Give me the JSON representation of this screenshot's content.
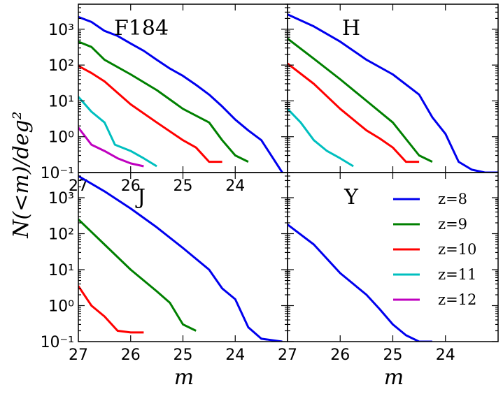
{
  "figure": {
    "ylabel": "N(<m)/deg²",
    "xlabel": "m"
  },
  "colors": {
    "z=8": "#0000ee",
    "z=9": "#008000",
    "z=10": "#ff0000",
    "z=11": "#00bfbf",
    "z=12": "#bf00bf"
  },
  "legend": {
    "placement": "inside Y panel, right",
    "entries": [
      "z=8",
      "z=9",
      "z=10",
      "z=11",
      "z=12"
    ]
  },
  "chart_data": [
    {
      "type": "line",
      "title": "F184",
      "xlabel": "m",
      "ylabel": "N(<m)/deg²",
      "xlim": [
        27,
        23
      ],
      "ylim": [
        0.1,
        5000
      ],
      "yscale": "log",
      "xticks": [
        "27",
        "26",
        "25",
        "24"
      ],
      "yticks": [
        "10³",
        "10²",
        "10¹",
        "10⁰",
        "10⁻¹"
      ],
      "series": [
        {
          "name": "z=8",
          "x": [
            27.0,
            26.75,
            26.5,
            26.25,
            26.0,
            25.75,
            25.5,
            25.25,
            25.0,
            24.75,
            24.5,
            24.25,
            24.0,
            23.75,
            23.5,
            23.1
          ],
          "y": [
            2200,
            1600,
            900,
            650,
            400,
            250,
            140,
            80,
            50,
            28,
            15,
            7,
            3,
            1.5,
            0.8,
            0.1
          ]
        },
        {
          "name": "z=9",
          "x": [
            27.0,
            26.75,
            26.5,
            26.0,
            25.5,
            25.0,
            24.5,
            24.25,
            24.0,
            23.75
          ],
          "y": [
            450,
            320,
            140,
            55,
            20,
            6,
            2.5,
            0.8,
            0.3,
            0.2
          ]
        },
        {
          "name": "z=10",
          "x": [
            27.0,
            26.75,
            26.5,
            26.0,
            25.5,
            25.0,
            24.75,
            24.5,
            24.25
          ],
          "y": [
            95,
            60,
            35,
            8,
            2.5,
            0.8,
            0.5,
            0.2,
            0.2
          ]
        },
        {
          "name": "z=11",
          "x": [
            27.0,
            26.75,
            26.5,
            26.3,
            26.0,
            25.75,
            25.5
          ],
          "y": [
            13,
            5,
            2.5,
            0.6,
            0.4,
            0.25,
            0.15
          ]
        },
        {
          "name": "z=12",
          "x": [
            27.0,
            26.75,
            26.5,
            26.25,
            26.0,
            25.75
          ],
          "y": [
            1.8,
            0.6,
            0.4,
            0.25,
            0.18,
            0.15
          ]
        }
      ]
    },
    {
      "type": "line",
      "title": "H",
      "xlabel": "m",
      "ylabel": "",
      "xlim": [
        27,
        23
      ],
      "ylim": [
        0.1,
        5000
      ],
      "yscale": "log",
      "series": [
        {
          "name": "z=8",
          "x": [
            27.0,
            26.5,
            26.0,
            25.5,
            25.0,
            24.5,
            24.25,
            24.0,
            23.75,
            23.5,
            23.25,
            23.0
          ],
          "y": [
            2600,
            1200,
            450,
            140,
            55,
            15,
            3.5,
            1.2,
            0.2,
            0.12,
            0.1,
            0.1
          ]
        },
        {
          "name": "z=9",
          "x": [
            27.0,
            26.5,
            26.0,
            25.5,
            25.0,
            24.5,
            24.25
          ],
          "y": [
            550,
            150,
            40,
            10,
            2.5,
            0.3,
            0.2
          ]
        },
        {
          "name": "z=10",
          "x": [
            27.0,
            26.5,
            26.0,
            25.5,
            25.25,
            25.0,
            24.75,
            24.5
          ],
          "y": [
            110,
            30,
            6,
            1.5,
            0.9,
            0.5,
            0.2,
            0.2
          ]
        },
        {
          "name": "z=11",
          "x": [
            27.0,
            26.75,
            26.5,
            26.25,
            26.0,
            25.75
          ],
          "y": [
            6,
            2.5,
            0.8,
            0.4,
            0.25,
            0.15
          ]
        }
      ]
    },
    {
      "type": "line",
      "title": "J",
      "xlabel": "m",
      "ylabel": "",
      "xlim": [
        27,
        23
      ],
      "ylim": [
        0.1,
        5000
      ],
      "yscale": "log",
      "xticks": [
        "27",
        "26",
        "25",
        "24"
      ],
      "yticks": [
        "10³",
        "10²",
        "10¹",
        "10⁰",
        "10⁻¹"
      ],
      "series": [
        {
          "name": "z=8",
          "x": [
            27.0,
            26.5,
            26.0,
            25.5,
            25.0,
            24.5,
            24.25,
            24.0,
            23.75,
            23.5,
            23.1
          ],
          "y": [
            4000,
            1500,
            500,
            150,
            40,
            10,
            3,
            1.5,
            0.25,
            0.12,
            0.1
          ]
        },
        {
          "name": "z=9",
          "x": [
            27.0,
            26.5,
            26.0,
            25.5,
            25.25,
            25.0,
            24.75
          ],
          "y": [
            250,
            50,
            10,
            2.5,
            1.2,
            0.3,
            0.2
          ]
        },
        {
          "name": "z=10",
          "x": [
            27.0,
            26.75,
            26.5,
            26.25,
            26.0,
            25.75
          ],
          "y": [
            3.5,
            1,
            0.5,
            0.2,
            0.18,
            0.18
          ]
        }
      ]
    },
    {
      "type": "line",
      "title": "Y",
      "xlabel": "m",
      "ylabel": "",
      "xlim": [
        27,
        23
      ],
      "ylim": [
        0.1,
        5000
      ],
      "yscale": "log",
      "xticks": [
        "27",
        "26",
        "25",
        "24"
      ],
      "series": [
        {
          "name": "z=8",
          "x": [
            27.0,
            26.5,
            26.0,
            25.5,
            25.25,
            25.0,
            24.75,
            24.5,
            24.25
          ],
          "y": [
            180,
            50,
            8,
            2,
            0.8,
            0.3,
            0.15,
            0.1,
            0.1
          ]
        }
      ]
    }
  ]
}
